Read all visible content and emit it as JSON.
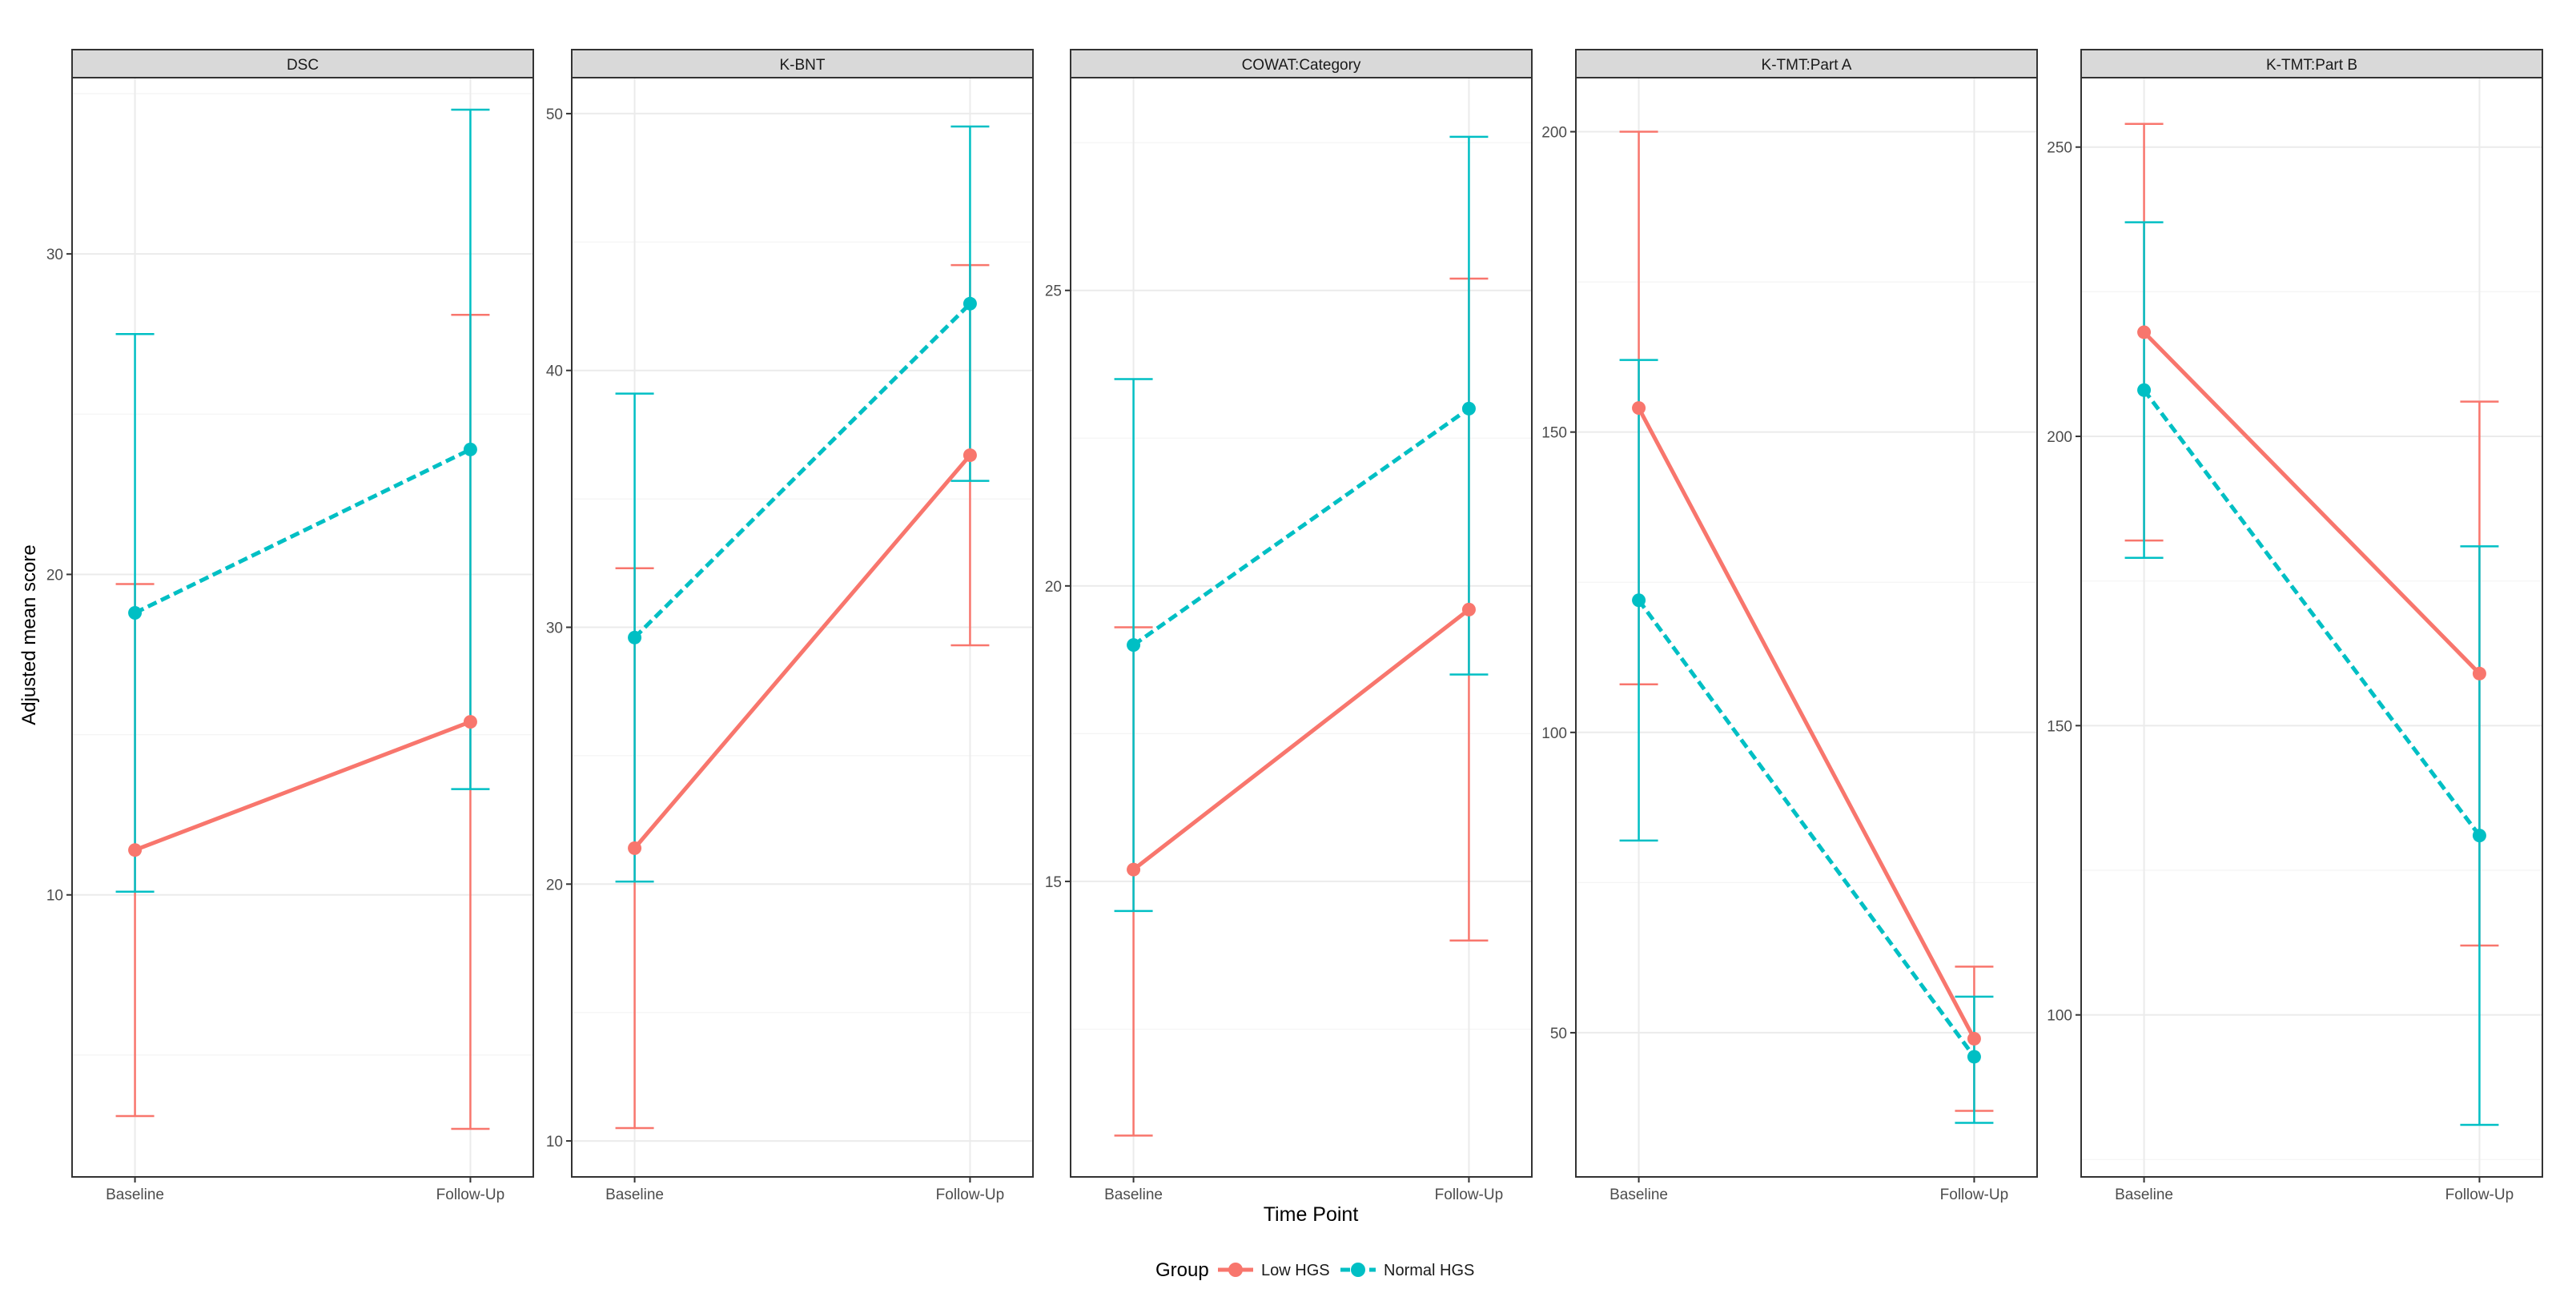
{
  "y_axis_title": "Adjusted mean score",
  "x_axis_title": "Time Point",
  "legend": {
    "title": "Group",
    "items": [
      {
        "label": "Low HGS",
        "color": "#F8766D",
        "line": "solid"
      },
      {
        "label": "Normal HGS",
        "color": "#00BFC4",
        "line": "dashed"
      }
    ]
  },
  "colors": {
    "low": "#F8766D",
    "normal": "#00BFC4",
    "strip_fill": "#D9D9D9",
    "grid_major": "#EBEBEB",
    "grid_minor": "#F4F4F4"
  },
  "chart_data": [
    {
      "type": "line",
      "title": "DSC",
      "categories": [
        "Baseline",
        "Follow-Up"
      ],
      "ylim": [
        1.2,
        35.5
      ],
      "yticks": [
        10,
        20,
        30
      ],
      "series": [
        {
          "name": "Low HGS",
          "values": [
            11.4,
            15.4
          ],
          "lower": [
            3.1,
            2.7
          ],
          "upper": [
            19.7,
            28.1
          ]
        },
        {
          "name": "Normal HGS",
          "values": [
            18.8,
            23.9
          ],
          "lower": [
            10.1,
            13.3
          ],
          "upper": [
            27.5,
            34.5
          ]
        }
      ]
    },
    {
      "type": "line",
      "title": "K-BNT",
      "categories": [
        "Baseline",
        "Follow-Up"
      ],
      "ylim": [
        8.6,
        51.4
      ],
      "yticks": [
        10,
        20,
        30,
        40,
        50
      ],
      "series": [
        {
          "name": "Low HGS",
          "values": [
            21.4,
            36.7
          ],
          "lower": [
            10.5,
            29.3
          ],
          "upper": [
            32.3,
            44.1
          ]
        },
        {
          "name": "Normal HGS",
          "values": [
            29.6,
            42.6
          ],
          "lower": [
            20.1,
            35.7
          ],
          "upper": [
            39.1,
            49.5
          ]
        }
      ]
    },
    {
      "type": "line",
      "title": "COWAT:Category",
      "categories": [
        "Baseline",
        "Follow-Up"
      ],
      "ylim": [
        10.0,
        28.6
      ],
      "yticks": [
        15,
        20,
        25
      ],
      "series": [
        {
          "name": "Low HGS",
          "values": [
            15.2,
            19.6
          ],
          "lower": [
            10.7,
            14.0
          ],
          "upper": [
            19.3,
            25.2
          ]
        },
        {
          "name": "Normal HGS",
          "values": [
            19.0,
            23.0
          ],
          "lower": [
            14.5,
            18.5
          ],
          "upper": [
            23.5,
            27.6
          ]
        }
      ]
    },
    {
      "type": "line",
      "title": "K-TMT:Part A",
      "categories": [
        "Baseline",
        "Follow-Up"
      ],
      "ylim": [
        26.0,
        209.0
      ],
      "yticks": [
        50,
        100,
        150,
        200
      ],
      "series": [
        {
          "name": "Low HGS",
          "values": [
            154,
            49
          ],
          "lower": [
            108,
            37
          ],
          "upper": [
            200,
            61
          ]
        },
        {
          "name": "Normal HGS",
          "values": [
            122,
            46
          ],
          "lower": [
            82,
            35
          ],
          "upper": [
            162,
            56
          ]
        }
      ]
    },
    {
      "type": "line",
      "title": "K-TMT:Part B",
      "categories": [
        "Baseline",
        "Follow-Up"
      ],
      "ylim": [
        72.0,
        262.0
      ],
      "yticks": [
        100,
        150,
        200,
        250
      ],
      "series": [
        {
          "name": "Low HGS",
          "values": [
            218,
            159
          ],
          "lower": [
            182,
            112
          ],
          "upper": [
            254,
            206
          ]
        },
        {
          "name": "Normal HGS",
          "values": [
            208,
            131
          ],
          "lower": [
            179,
            81
          ],
          "upper": [
            237,
            181
          ]
        }
      ]
    }
  ]
}
